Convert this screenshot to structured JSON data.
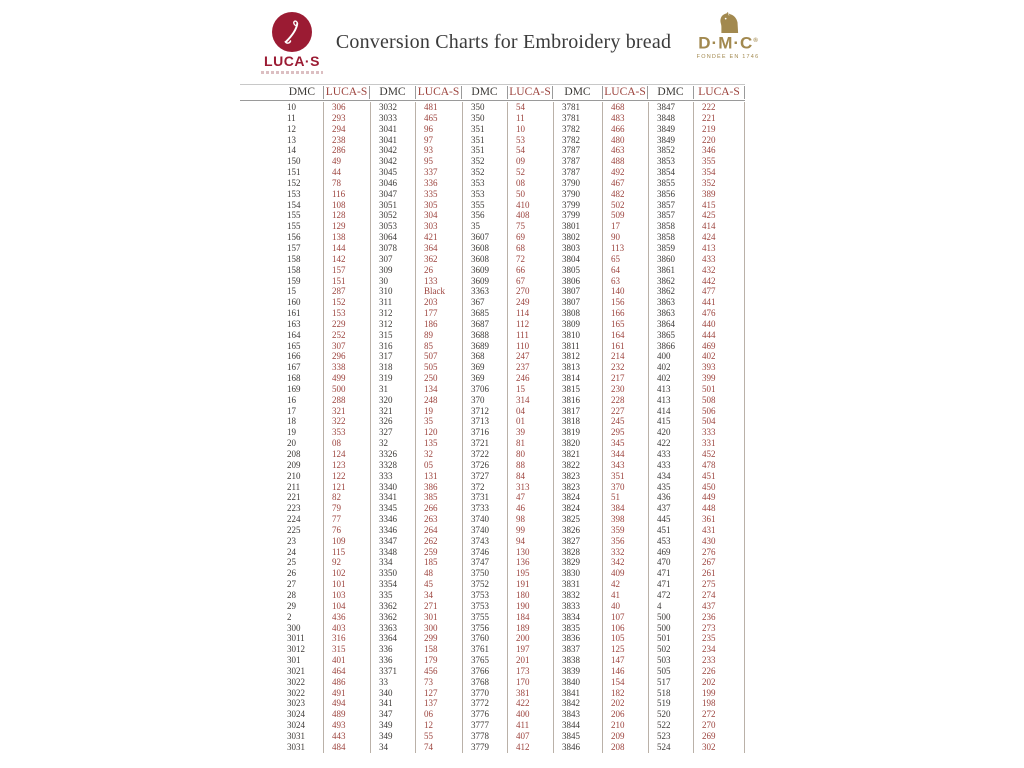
{
  "colors": {
    "lucas_red": "#9c433d",
    "dmc_text": "#3c3936",
    "logo_crimson": "#9b1b33",
    "dmc_gold": "#a2894f",
    "rule": "#9a9a9a",
    "vline": "#bab1a8",
    "title_color": "#3b3b3b"
  },
  "header": {
    "title": "Conversion Charts for Embroidery bread",
    "lucas_logo": {
      "name": "LUCA·S"
    },
    "dmc_logo": {
      "name": "D·M·C",
      "mark": "®",
      "sub": "FONDÉE EN 1746"
    }
  },
  "table": {
    "col_headers": [
      "DMC",
      "LUCA-S",
      "DMC",
      "LUCA-S",
      "DMC",
      "LUCA-S",
      "DMC",
      "LUCA-S",
      "DMC",
      "LUCA-S"
    ],
    "rows": [
      [
        "10",
        "306",
        "3032",
        "481",
        "350",
        "54",
        "3781",
        "468",
        "3847",
        "222"
      ],
      [
        "11",
        "293",
        "3033",
        "465",
        "350",
        "11",
        "3781",
        "483",
        "3848",
        "221"
      ],
      [
        "12",
        "294",
        "3041",
        "96",
        "351",
        "10",
        "3782",
        "466",
        "3849",
        "219"
      ],
      [
        "13",
        "238",
        "3041",
        "97",
        "351",
        "53",
        "3782",
        "480",
        "3849",
        "220"
      ],
      [
        "14",
        "286",
        "3042",
        "93",
        "351",
        "54",
        "3787",
        "463",
        "3852",
        "346"
      ],
      [
        "150",
        "49",
        "3042",
        "95",
        "352",
        "09",
        "3787",
        "488",
        "3853",
        "355"
      ],
      [
        "151",
        "44",
        "3045",
        "337",
        "352",
        "52",
        "3787",
        "492",
        "3854",
        "354"
      ],
      [
        "152",
        "78",
        "3046",
        "336",
        "353",
        "08",
        "3790",
        "467",
        "3855",
        "352"
      ],
      [
        "153",
        "116",
        "3047",
        "335",
        "353",
        "50",
        "3790",
        "482",
        "3856",
        "389"
      ],
      [
        "154",
        "108",
        "3051",
        "305",
        "355",
        "410",
        "3799",
        "502",
        "3857",
        "415"
      ],
      [
        "155",
        "128",
        "3052",
        "304",
        "356",
        "408",
        "3799",
        "509",
        "3857",
        "425"
      ],
      [
        "155",
        "129",
        "3053",
        "303",
        "35",
        "75",
        "3801",
        "17",
        "3858",
        "414"
      ],
      [
        "156",
        "138",
        "3064",
        "421",
        "3607",
        "69",
        "3802",
        "90",
        "3858",
        "424"
      ],
      [
        "157",
        "144",
        "3078",
        "364",
        "3608",
        "68",
        "3803",
        "113",
        "3859",
        "413"
      ],
      [
        "158",
        "142",
        "307",
        "362",
        "3608",
        "72",
        "3804",
        "65",
        "3860",
        "433"
      ],
      [
        "158",
        "157",
        "309",
        "26",
        "3609",
        "66",
        "3805",
        "64",
        "3861",
        "432"
      ],
      [
        "159",
        "151",
        "30",
        "133",
        "3609",
        "67",
        "3806",
        "63",
        "3862",
        "442"
      ],
      [
        "15",
        "287",
        "310",
        "Black",
        "3363",
        "270",
        "3807",
        "140",
        "3862",
        "477"
      ],
      [
        "160",
        "152",
        "311",
        "203",
        "367",
        "249",
        "3807",
        "156",
        "3863",
        "441"
      ],
      [
        "161",
        "153",
        "312",
        "177",
        "3685",
        "114",
        "3808",
        "166",
        "3863",
        "476"
      ],
      [
        "163",
        "229",
        "312",
        "186",
        "3687",
        "112",
        "3809",
        "165",
        "3864",
        "440"
      ],
      [
        "164",
        "252",
        "315",
        "89",
        "3688",
        "111",
        "3810",
        "164",
        "3865",
        "444"
      ],
      [
        "165",
        "307",
        "316",
        "85",
        "3689",
        "110",
        "3811",
        "161",
        "3866",
        "469"
      ],
      [
        "166",
        "296",
        "317",
        "507",
        "368",
        "247",
        "3812",
        "214",
        "400",
        "402"
      ],
      [
        "167",
        "338",
        "318",
        "505",
        "369",
        "237",
        "3813",
        "232",
        "402",
        "393"
      ],
      [
        "168",
        "499",
        "319",
        "250",
        "369",
        "246",
        "3814",
        "217",
        "402",
        "399"
      ],
      [
        "169",
        "500",
        "31",
        "134",
        "3706",
        "15",
        "3815",
        "230",
        "413",
        "501"
      ],
      [
        "16",
        "288",
        "320",
        "248",
        "370",
        "314",
        "3816",
        "228",
        "413",
        "508"
      ],
      [
        "17",
        "321",
        "321",
        "19",
        "3712",
        "04",
        "3817",
        "227",
        "414",
        "506"
      ],
      [
        "18",
        "322",
        "326",
        "35",
        "3713",
        "01",
        "3818",
        "245",
        "415",
        "504"
      ],
      [
        "19",
        "353",
        "327",
        "120",
        "3716",
        "39",
        "3819",
        "295",
        "420",
        "333"
      ],
      [
        "20",
        "08",
        "32",
        "135",
        "3721",
        "81",
        "3820",
        "345",
        "422",
        "331"
      ],
      [
        "208",
        "124",
        "3326",
        "32",
        "3722",
        "80",
        "3821",
        "344",
        "433",
        "452"
      ],
      [
        "209",
        "123",
        "3328",
        "05",
        "3726",
        "88",
        "3822",
        "343",
        "433",
        "478"
      ],
      [
        "210",
        "122",
        "333",
        "131",
        "3727",
        "84",
        "3823",
        "351",
        "434",
        "451"
      ],
      [
        "211",
        "121",
        "3340",
        "386",
        "372",
        "313",
        "3823",
        "370",
        "435",
        "450"
      ],
      [
        "221",
        "82",
        "3341",
        "385",
        "3731",
        "47",
        "3824",
        "51",
        "436",
        "449"
      ],
      [
        "223",
        "79",
        "3345",
        "266",
        "3733",
        "46",
        "3824",
        "384",
        "437",
        "448"
      ],
      [
        "224",
        "77",
        "3346",
        "263",
        "3740",
        "98",
        "3825",
        "398",
        "445",
        "361"
      ],
      [
        "225",
        "76",
        "3346",
        "264",
        "3740",
        "99",
        "3826",
        "359",
        "451",
        "431"
      ],
      [
        "23",
        "109",
        "3347",
        "262",
        "3743",
        "94",
        "3827",
        "356",
        "453",
        "430"
      ],
      [
        "24",
        "115",
        "3348",
        "259",
        "3746",
        "130",
        "3828",
        "332",
        "469",
        "276"
      ],
      [
        "25",
        "92",
        "334",
        "185",
        "3747",
        "136",
        "3829",
        "342",
        "470",
        "267"
      ],
      [
        "26",
        "102",
        "3350",
        "48",
        "3750",
        "195",
        "3830",
        "409",
        "471",
        "261"
      ],
      [
        "27",
        "101",
        "3354",
        "45",
        "3752",
        "191",
        "3831",
        "42",
        "471",
        "275"
      ],
      [
        "28",
        "103",
        "335",
        "34",
        "3753",
        "180",
        "3832",
        "41",
        "472",
        "274"
      ],
      [
        "29",
        "104",
        "3362",
        "271",
        "3753",
        "190",
        "3833",
        "40",
        "4",
        "437"
      ],
      [
        "2",
        "436",
        "3362",
        "301",
        "3755",
        "184",
        "3834",
        "107",
        "500",
        "236"
      ],
      [
        "300",
        "403",
        "3363",
        "300",
        "3756",
        "189",
        "3835",
        "106",
        "500",
        "273"
      ],
      [
        "3011",
        "316",
        "3364",
        "299",
        "3760",
        "200",
        "3836",
        "105",
        "501",
        "235"
      ],
      [
        "3012",
        "315",
        "336",
        "158",
        "3761",
        "197",
        "3837",
        "125",
        "502",
        "234"
      ],
      [
        "301",
        "401",
        "336",
        "179",
        "3765",
        "201",
        "3838",
        "147",
        "503",
        "233"
      ],
      [
        "3021",
        "464",
        "3371",
        "456",
        "3766",
        "173",
        "3839",
        "146",
        "505",
        "226"
      ],
      [
        "3022",
        "486",
        "33",
        "73",
        "3768",
        "170",
        "3840",
        "154",
        "517",
        "202"
      ],
      [
        "3022",
        "491",
        "340",
        "127",
        "3770",
        "381",
        "3841",
        "182",
        "518",
        "199"
      ],
      [
        "3023",
        "494",
        "341",
        "137",
        "3772",
        "422",
        "3842",
        "202",
        "519",
        "198"
      ],
      [
        "3024",
        "489",
        "347",
        "06",
        "3776",
        "400",
        "3843",
        "206",
        "520",
        "272"
      ],
      [
        "3024",
        "493",
        "349",
        "12",
        "3777",
        "411",
        "3844",
        "210",
        "522",
        "270"
      ],
      [
        "3031",
        "443",
        "349",
        "55",
        "3778",
        "407",
        "3845",
        "209",
        "523",
        "269"
      ],
      [
        "3031",
        "484",
        "34",
        "74",
        "3779",
        "412",
        "3846",
        "208",
        "524",
        "302"
      ]
    ]
  }
}
